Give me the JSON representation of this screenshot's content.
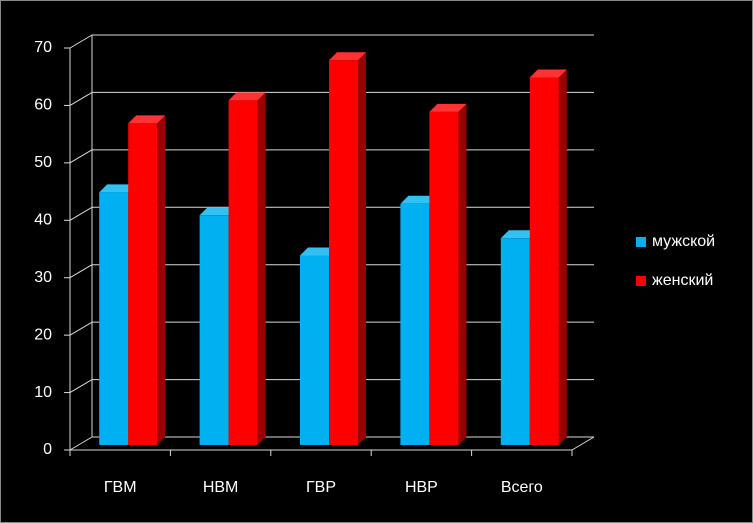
{
  "chart_data": {
    "type": "bar3d",
    "categories": [
      "ГВМ",
      "НВМ",
      "ГВР",
      "НВР",
      "Всего"
    ],
    "series": [
      {
        "name": "мужской",
        "color": "#00b0f0",
        "values": [
          44,
          40,
          33,
          42,
          36
        ]
      },
      {
        "name": "женский",
        "color": "#ff0000",
        "values": [
          56,
          60,
          67,
          58,
          64
        ]
      }
    ],
    "ylim": [
      0,
      70
    ],
    "yticks": [
      0,
      10,
      20,
      30,
      40,
      50,
      60,
      70
    ],
    "grid": true,
    "legend": "right"
  }
}
